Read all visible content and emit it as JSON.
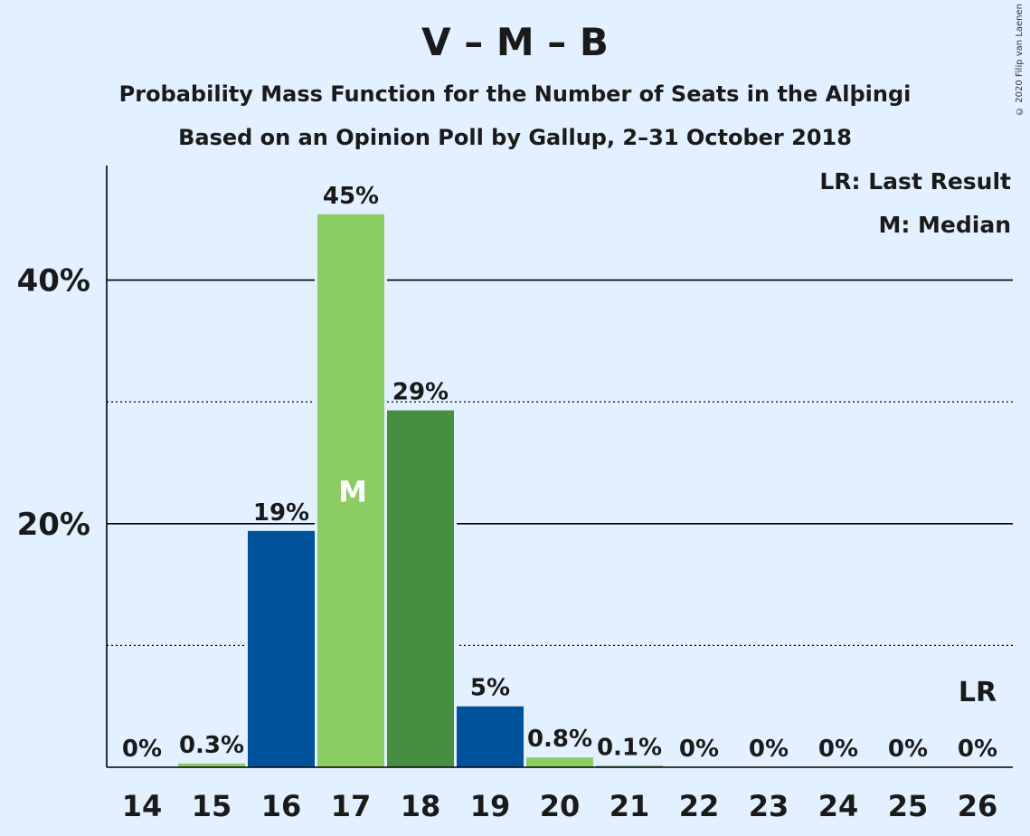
{
  "title": "V – M – B",
  "subtitle1": "Probability Mass Function for the Number of Seats in the Alþingi",
  "subtitle2": "Based on an Opinion Poll by Gallup, 2–31 October 2018",
  "copyright": "© 2020 Filip van Laenen",
  "legend": {
    "lr": "LR: Last Result",
    "median": "M: Median"
  },
  "colors": {
    "dark_blue": "#00539a",
    "light_green": "#8ccd63",
    "dark_green": "#468f41",
    "background": "#e2f0ff"
  },
  "chart_data": {
    "type": "bar",
    "categories": [
      "14",
      "15",
      "16",
      "17",
      "18",
      "19",
      "20",
      "21",
      "22",
      "23",
      "24",
      "25",
      "26"
    ],
    "values": [
      0,
      0.3,
      19.4,
      45.4,
      29.3,
      5.0,
      0.8,
      0.1,
      0,
      0,
      0,
      0,
      0
    ],
    "value_labels": [
      "0%",
      "0.3%",
      "19%",
      "45%",
      "29%",
      "5%",
      "0.8%",
      "0.1%",
      "0%",
      "0%",
      "0%",
      "0%",
      "0%"
    ],
    "bar_colors": [
      "#00539a",
      "#8ccd63",
      "#00539a",
      "#8ccd63",
      "#468f41",
      "#00539a",
      "#8ccd63",
      "#468f41",
      "#00539a",
      "#8ccd63",
      "#468f41",
      "#00539a",
      "#8ccd63"
    ],
    "y_ticks": [
      "20%",
      "40%"
    ],
    "ylim": [
      0,
      49.4
    ],
    "median_category": "17",
    "median_label": "M",
    "last_result_category": "26",
    "last_result_label": "LR",
    "grid": "major solid at 20% and 40%, minor dotted at 10% and 30%",
    "legend_placement": "top-right"
  }
}
